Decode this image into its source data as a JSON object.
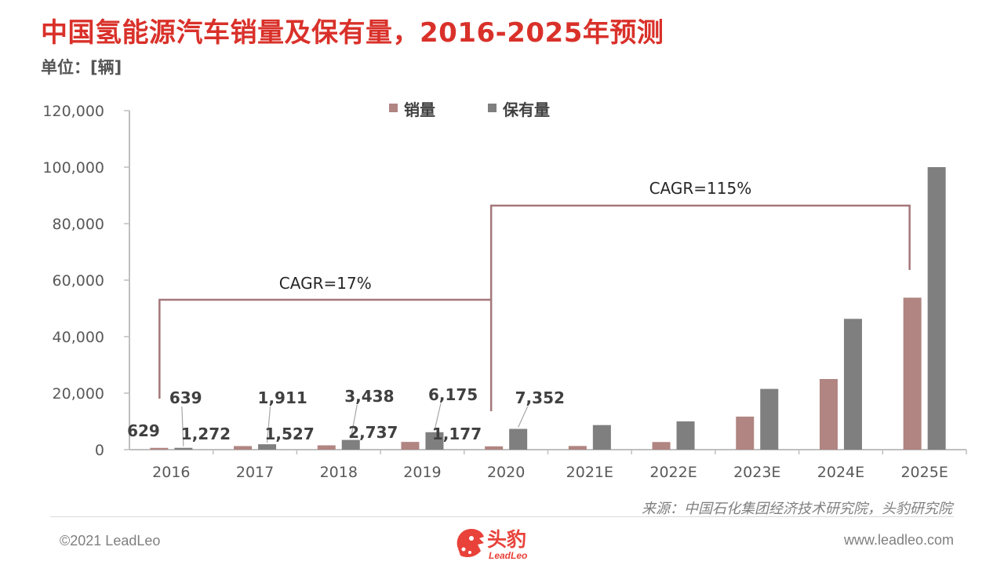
{
  "title": "中国氢能源汽车销量及保有量，2016-2025年预测",
  "unit_label": "单位：[辆]",
  "source": "来源：中国石化集团经济技术研究院，头豹研究院",
  "footer": {
    "copyright": "©2021 LeadLeo",
    "website": "www.leadleo.com",
    "logo_text": "头豹",
    "logo_sub": "LeadLeo"
  },
  "colors": {
    "sales": "#b08582",
    "stock": "#7f7f7f",
    "bracket": "#a4777a",
    "title": "#d9312a"
  },
  "chart_data": {
    "type": "bar",
    "categories": [
      "2016",
      "2017",
      "2018",
      "2019",
      "2020",
      "2021E",
      "2022E",
      "2023E",
      "2024E",
      "2025E"
    ],
    "series": [
      {
        "name": "销量",
        "values": [
          629,
          1272,
          1527,
          2737,
          1177,
          1300,
          2700,
          11700,
          25000,
          53800
        ]
      },
      {
        "name": "保有量",
        "values": [
          639,
          1911,
          3438,
          6175,
          7352,
          8700,
          10000,
          21500,
          46300,
          100000
        ]
      }
    ],
    "ylim": [
      0,
      120000
    ],
    "yticks": [
      "0",
      "20,000",
      "40,000",
      "60,000",
      "80,000",
      "100,000",
      "120,000"
    ],
    "legend": "top-center",
    "grid": false,
    "data_labels": [
      {
        "text": "629",
        "series": 0,
        "index": 0
      },
      {
        "text": "639",
        "series": 1,
        "index": 0
      },
      {
        "text": "1,272",
        "series": 0,
        "index": 1
      },
      {
        "text": "1,911",
        "series": 1,
        "index": 1
      },
      {
        "text": "1,527",
        "series": 0,
        "index": 2
      },
      {
        "text": "3,438",
        "series": 1,
        "index": 2
      },
      {
        "text": "2,737",
        "series": 0,
        "index": 3
      },
      {
        "text": "6,175",
        "series": 1,
        "index": 3
      },
      {
        "text": "1,177",
        "series": 0,
        "index": 4
      },
      {
        "text": "7,352",
        "series": 1,
        "index": 4
      }
    ],
    "annotations": [
      {
        "text": "CAGR=17%",
        "from": "2016",
        "to": "2020"
      },
      {
        "text": "CAGR=115%",
        "from": "2020",
        "to": "2025E"
      }
    ]
  }
}
